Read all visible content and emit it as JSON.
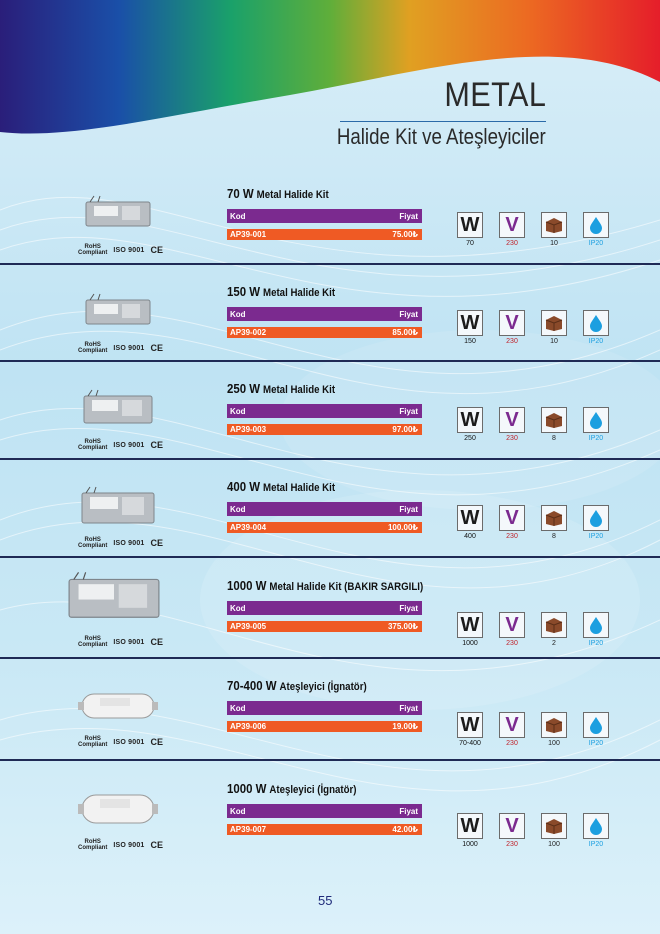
{
  "header": {
    "title": "METAL",
    "subtitle": "Halide Kit ve Ateşleyiciler"
  },
  "colors": {
    "kod_bar": "#7b2a8f",
    "code_bar": "#ef5a24",
    "ip_color": "#1c9fe0",
    "voltage_color": "#c0232b"
  },
  "labels": {
    "kod": "Kod",
    "fiyat": "Fiyat",
    "rohs_line1": "RoHS",
    "rohs_line2": "Compliant",
    "iso": "ISO 9001",
    "ce": "CE",
    "icon_w": "W",
    "icon_v": "V"
  },
  "products": [
    {
      "watt": "70 W",
      "name": "Metal Halide Kit",
      "code": "AP39-001",
      "price": "75.00₺",
      "w_label": "70",
      "v_label": "230",
      "box_label": "10",
      "ip_label": "IP20"
    },
    {
      "watt": "150 W",
      "name": "Metal Halide Kit",
      "code": "AP39-002",
      "price": "85.00₺",
      "w_label": "150",
      "v_label": "230",
      "box_label": "10",
      "ip_label": "IP20"
    },
    {
      "watt": "250 W",
      "name": "Metal Halide Kit",
      "code": "AP39-003",
      "price": "97.00₺",
      "w_label": "250",
      "v_label": "230",
      "box_label": "8",
      "ip_label": "IP20"
    },
    {
      "watt": "400 W",
      "name": "Metal Halide Kit",
      "code": "AP39-004",
      "price": "100.00₺",
      "w_label": "400",
      "v_label": "230",
      "box_label": "8",
      "ip_label": "IP20"
    },
    {
      "watt": "1000 W",
      "name": "Metal Halide Kit (BAKIR SARGILI)",
      "code": "AP39-005",
      "price": "375.00₺",
      "w_label": "1000",
      "v_label": "230",
      "box_label": "2",
      "ip_label": "IP20"
    },
    {
      "watt": "70-400 W",
      "name": "Ateşleyici (İgnatör)",
      "code": "AP39-006",
      "price": "19.00₺",
      "w_label": "70-400",
      "v_label": "230",
      "box_label": "100",
      "ip_label": "IP20"
    },
    {
      "watt": "1000 W",
      "name": "Ateşleyici (İgnatör)",
      "code": "AP39-007",
      "price": "42.00₺",
      "w_label": "1000",
      "v_label": "230",
      "box_label": "100",
      "ip_label": "IP20"
    }
  ],
  "page_number": "55"
}
